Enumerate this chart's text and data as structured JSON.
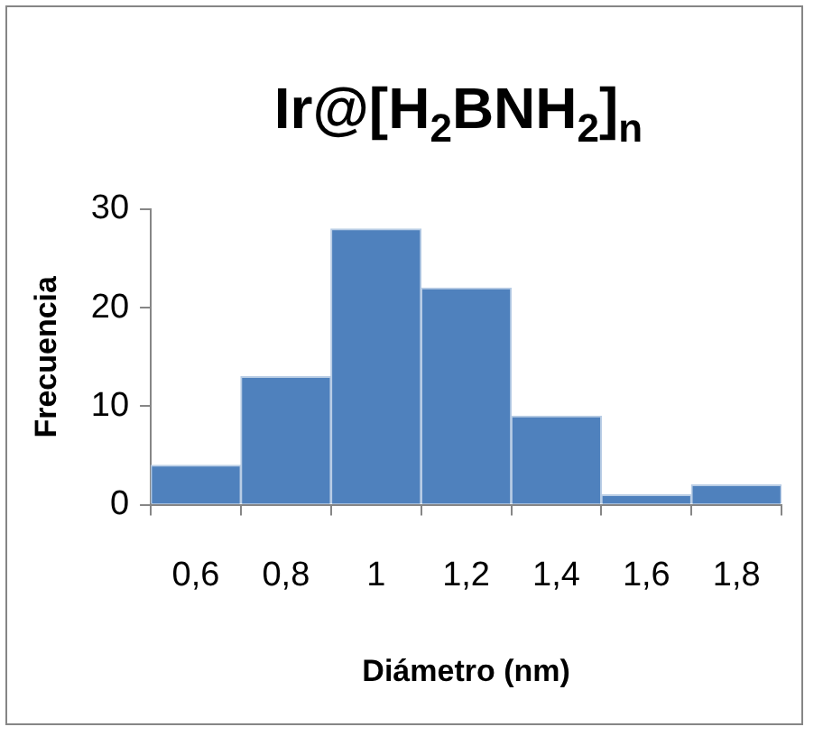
{
  "chart_data": {
    "type": "bar",
    "title": "Ir@[H$_{2}$BNH$_{2}$]$_{n}$",
    "xlabel": "Diámetro (nm)",
    "ylabel": "Frecuencia",
    "categories": [
      "0,6",
      "0,8",
      "1",
      "1,2",
      "1,4",
      "1,6",
      "1,8"
    ],
    "values": [
      4,
      13,
      28,
      22,
      9,
      1,
      2
    ],
    "color": "#4f81bd",
    "ylim": [
      0,
      30
    ],
    "yticks": [
      0,
      10,
      20,
      30
    ],
    "grid": false,
    "legend": false
  }
}
